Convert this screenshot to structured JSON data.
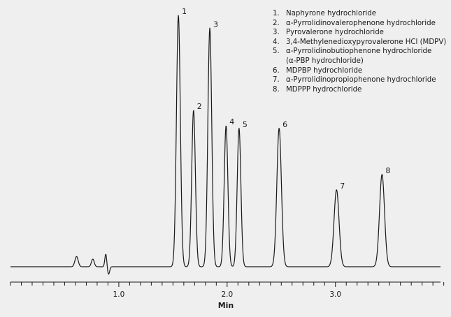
{
  "chart_data": {
    "type": "line",
    "title": "",
    "xlabel": "Min",
    "ylabel": "",
    "xlim": [
      0.0,
      3.97
    ],
    "ylim": [
      0.0,
      1.0
    ],
    "x_tick_labels": [
      {
        "value": 1.0,
        "label": "1.0"
      },
      {
        "value": 2.0,
        "label": "2.0"
      },
      {
        "value": 3.0,
        "label": "3.0"
      }
    ],
    "minor_tick_step": 0.1,
    "grid": false,
    "legend_position": "top-right",
    "line_color": "#1a1a1a",
    "background": "#efefef",
    "baseline": 0.01,
    "peaks": [
      {
        "label": "1",
        "time": 1.55,
        "height": 0.99,
        "width": 0.018
      },
      {
        "label": "2",
        "time": 1.69,
        "height": 0.62,
        "width": 0.017
      },
      {
        "label": "3",
        "time": 1.84,
        "height": 0.94,
        "width": 0.018
      },
      {
        "label": "4",
        "time": 1.99,
        "height": 0.56,
        "width": 0.017
      },
      {
        "label": "5",
        "time": 2.11,
        "height": 0.55,
        "width": 0.017
      },
      {
        "label": "6",
        "time": 2.48,
        "height": 0.55,
        "width": 0.021
      },
      {
        "label": "7",
        "time": 3.01,
        "height": 0.31,
        "width": 0.023
      },
      {
        "label": "8",
        "time": 3.43,
        "height": 0.37,
        "width": 0.023
      }
    ],
    "disturbance": [
      {
        "time": 0.61,
        "height": 0.04,
        "width": 0.015
      },
      {
        "time": 0.76,
        "height": 0.03,
        "width": 0.013
      },
      {
        "time": 0.88,
        "height": 0.05,
        "width": 0.009
      },
      {
        "time": 0.905,
        "height": -0.03,
        "width": 0.01
      }
    ],
    "legend": [
      {
        "num": "1.",
        "text": "Naphyrone hydrochloride"
      },
      {
        "num": "2.",
        "text": "α-Pyrrolidinovalerophenone hydrochloride"
      },
      {
        "num": "3.",
        "text": "Pyrovalerone hydrochloride"
      },
      {
        "num": "4.",
        "text": "3,4-Methylenedioxypyrovalerone HCl (MDPV)"
      },
      {
        "num": "5.",
        "text": "α-Pyrrolidinobutiophenone hydrochloride"
      },
      {
        "num": "",
        "text": "(α-PBP hydrochloride)"
      },
      {
        "num": "6.",
        "text": "MDPBP hydrochloride"
      },
      {
        "num": "7.",
        "text": "α-Pyrrolidinopropiophenone hydrochloride"
      },
      {
        "num": "8.",
        "text": "MDPPP hydrochloride"
      }
    ]
  }
}
